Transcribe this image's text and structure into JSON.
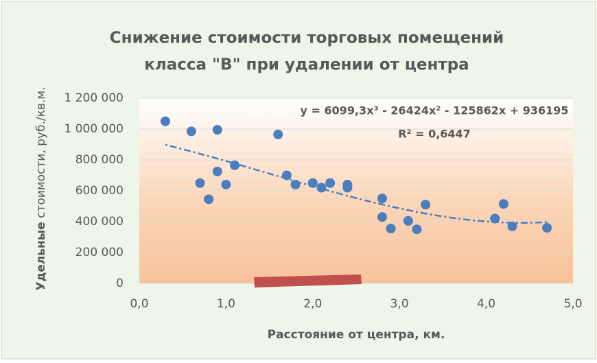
{
  "chart_data": {
    "type": "scatter",
    "title": [
      "Снижение стоимости торговых помещений",
      "класса \"B\" при удалении от центра"
    ],
    "x_label": "Расстояние от центра, км.",
    "y_label_bold": "Удельные",
    "y_label": "стоимости, руб./кв.м.",
    "trendline_equation": "y = 6099,3x³ - 26424x² - 125862x + 936195",
    "trendline_r2": "R² = 0,6447",
    "trendline": {
      "type": "polynomial",
      "order": 3
    },
    "color": "#4a7ebf",
    "x": [
      0.3,
      0.6,
      0.7,
      0.8,
      0.9,
      0.9,
      1.0,
      1.1,
      1.6,
      1.7,
      1.8,
      2.0,
      2.1,
      2.2,
      2.4,
      2.4,
      2.8,
      2.8,
      2.9,
      3.1,
      3.2,
      3.3,
      4.1,
      4.2,
      4.3,
      4.7
    ],
    "values": [
      1050000,
      985000,
      650000,
      545000,
      995000,
      725000,
      640000,
      765000,
      965000,
      700000,
      640000,
      650000,
      620000,
      650000,
      640000,
      620000,
      550000,
      430000,
      355000,
      405000,
      350000,
      510000,
      420000,
      515000,
      370000,
      360000
    ],
    "xlim": [
      0,
      5
    ],
    "xticks": [
      {
        "value": 0,
        "label": "0,0"
      },
      {
        "value": 1,
        "label": "1,0"
      },
      {
        "value": 2,
        "label": "2,0"
      },
      {
        "value": 3,
        "label": "3,0"
      },
      {
        "value": 4,
        "label": "4,0"
      },
      {
        "value": 5,
        "label": "5,0"
      }
    ],
    "ylim": [
      0,
      1200000
    ],
    "yticks": [
      0,
      {
        "value": 200000,
        "label": "200 000"
      },
      {
        "value": 400000,
        "label": "400 000"
      },
      {
        "value": 600000,
        "label": "600 000"
      },
      {
        "value": 800000,
        "label": "800 000"
      },
      {
        "value": 1000000,
        "label": "1 000 000"
      },
      {
        "value": 1200000,
        "label": "1 200 000"
      }
    ],
    "grid": true
  }
}
